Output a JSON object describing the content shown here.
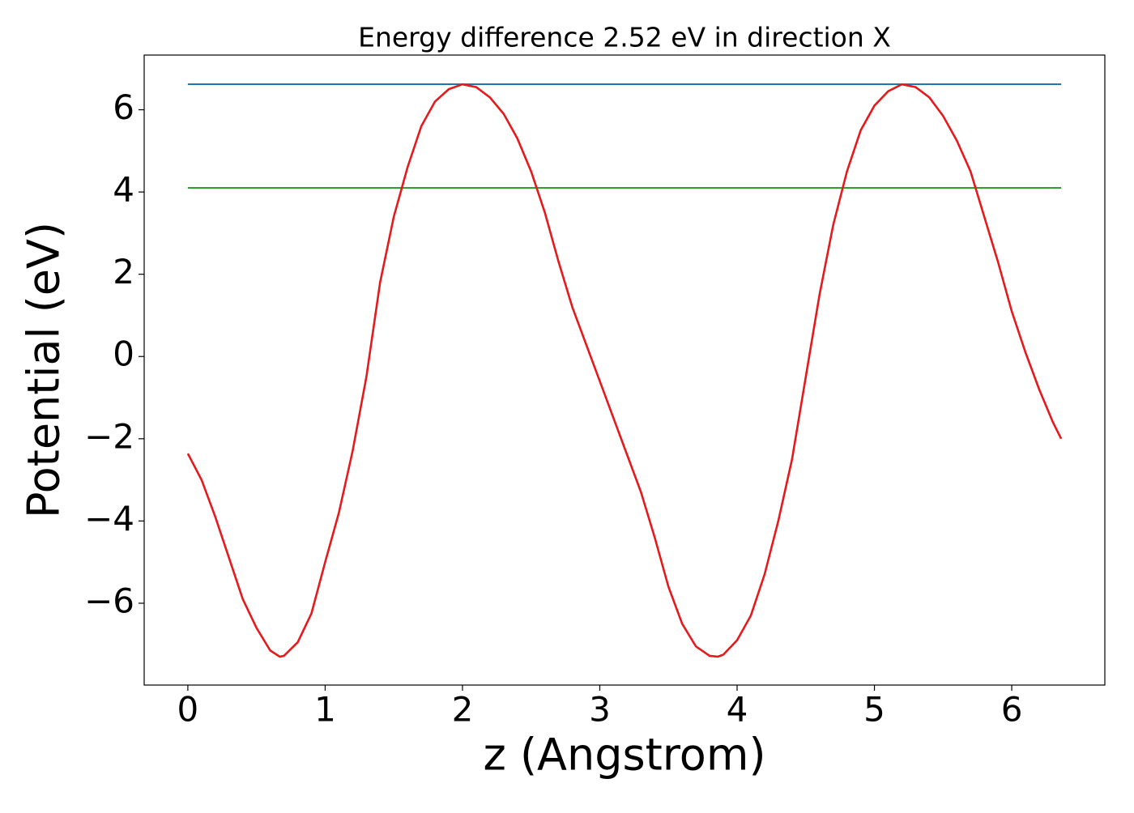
{
  "chart_data": {
    "type": "line",
    "title": "Energy difference 2.52 eV in direction X",
    "xlabel": "z (Angstrom)",
    "ylabel": "Potential (eV)",
    "xlim": [
      -0.318,
      6.678
    ],
    "ylim": [
      -7.99,
      7.33
    ],
    "xticks": [
      0,
      1,
      2,
      3,
      4,
      5,
      6
    ],
    "yticks": [
      {
        "value": -6,
        "label": "−6"
      },
      {
        "value": -4,
        "label": "−4"
      },
      {
        "value": -2,
        "label": "−2"
      },
      0,
      2,
      4,
      6
    ],
    "x": [
      0,
      0.1,
      0.2,
      0.3,
      0.4,
      0.5,
      0.6,
      0.67,
      0.7,
      0.8,
      0.9,
      1.0,
      1.1,
      1.2,
      1.3,
      1.4,
      1.5,
      1.6,
      1.7,
      1.8,
      1.9,
      2.0,
      2.1,
      2.2,
      2.3,
      2.4,
      2.5,
      2.6,
      2.7,
      2.8,
      2.9,
      3.0,
      3.1,
      3.2,
      3.3,
      3.4,
      3.5,
      3.6,
      3.7,
      3.8,
      3.86,
      3.9,
      4.0,
      4.1,
      4.2,
      4.3,
      4.4,
      4.5,
      4.6,
      4.7,
      4.8,
      4.9,
      5.0,
      5.1,
      5.2,
      5.3,
      5.4,
      5.5,
      5.6,
      5.7,
      5.8,
      5.9,
      6.0,
      6.1,
      6.2,
      6.3,
      6.36
    ],
    "series": [
      {
        "color": "#e41a1c",
        "values": [
          -2.36,
          -3.0,
          -3.9,
          -4.9,
          -5.9,
          -6.6,
          -7.15,
          -7.3,
          -7.28,
          -6.95,
          -6.25,
          -5.0,
          -3.8,
          -2.3,
          -0.5,
          1.8,
          3.4,
          4.6,
          5.6,
          6.2,
          6.5,
          6.62,
          6.55,
          6.3,
          5.9,
          5.3,
          4.5,
          3.5,
          2.3,
          1.2,
          0.3,
          -0.6,
          -1.5,
          -2.4,
          -3.3,
          -4.4,
          -5.6,
          -6.5,
          -7.05,
          -7.28,
          -7.3,
          -7.25,
          -6.9,
          -6.3,
          -5.3,
          -4.0,
          -2.5,
          -0.5,
          1.5,
          3.2,
          4.5,
          5.5,
          6.1,
          6.45,
          6.62,
          6.55,
          6.3,
          5.85,
          5.25,
          4.5,
          3.4,
          2.3,
          1.1,
          0.1,
          -0.8,
          -1.6,
          -2.0
        ]
      }
    ],
    "hlines": [
      {
        "value": 6.62,
        "color": "#1f77b4"
      },
      {
        "value": 4.1,
        "color": "#2ca02c"
      }
    ],
    "hline_xrange": [
      0,
      6.36
    ]
  }
}
